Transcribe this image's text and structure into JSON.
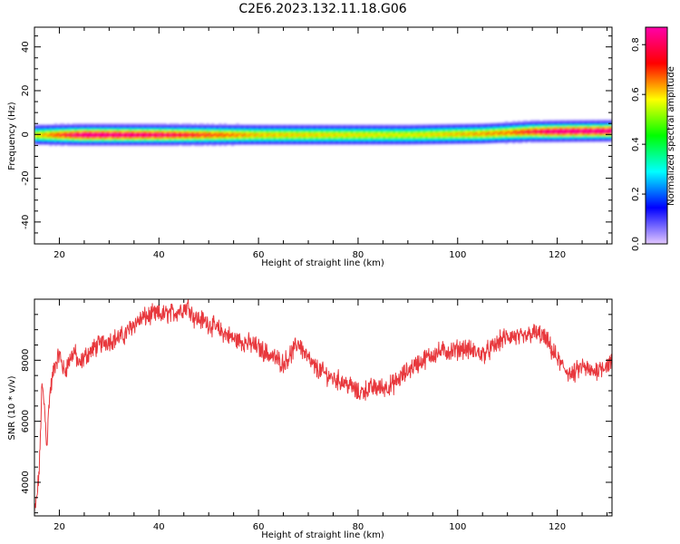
{
  "figure": {
    "title": "C2E6.2023.132.11.18.G06"
  },
  "chart_data": [
    {
      "type": "heatmap",
      "xlabel": "Height of straight line (km)",
      "ylabel": "Frequency (Hz)",
      "xlim": [
        15,
        131
      ],
      "ylim": [
        -50,
        49
      ],
      "x_ticks": [
        20,
        40,
        60,
        80,
        100,
        120
      ],
      "y_ticks": [
        -40,
        -20,
        0,
        20,
        40
      ],
      "x_tick_labels": [
        "20",
        "40",
        "60",
        "80",
        "100",
        "120"
      ],
      "y_tick_labels": [
        "-40",
        "-20",
        "0",
        "20",
        "40"
      ],
      "signal": {
        "center_frequency_hz": 0,
        "band_halfwidth_hz": 5,
        "offset_trend": [
          [
            15,
            0
          ],
          [
            25,
            0
          ],
          [
            60,
            0
          ],
          [
            90,
            0
          ],
          [
            105,
            0.5
          ],
          [
            115,
            1.5
          ],
          [
            131,
            1.8
          ]
        ],
        "peak_amplitude_trend": [
          [
            15,
            0.55
          ],
          [
            25,
            0.85
          ],
          [
            40,
            0.8
          ],
          [
            60,
            0.6
          ],
          [
            90,
            0.55
          ],
          [
            110,
            0.65
          ],
          [
            120,
            0.85
          ],
          [
            131,
            0.85
          ]
        ]
      },
      "colorbar": {
        "label": "Normalized spectral amplitude",
        "range": [
          0,
          0.87
        ],
        "ticks": [
          0.0,
          0.2,
          0.4,
          0.6,
          0.8
        ],
        "tick_labels": [
          "0.0",
          "0.2",
          "0.4",
          "0.6",
          "0.8"
        ],
        "colormap": "gist_rainbow_reversed",
        "colors": [
          "#e3c7ff",
          "#0000ff",
          "#00ffff",
          "#00ff00",
          "#ffff00",
          "#ff0000",
          "#ff00aa"
        ]
      }
    },
    {
      "type": "line",
      "xlabel": "Height of straight line (km)",
      "ylabel": "SNR (10 * v/v)",
      "xlim": [
        15,
        131
      ],
      "ylim": [
        2900,
        10000
      ],
      "x_ticks": [
        20,
        40,
        60,
        80,
        100,
        120
      ],
      "y_ticks": [
        4000,
        6000,
        8000
      ],
      "x_tick_labels": [
        "20",
        "40",
        "60",
        "80",
        "100",
        "120"
      ],
      "y_tick_labels": [
        "4000",
        "6000",
        "8000"
      ],
      "line_color": "#e8383d",
      "series": [
        {
          "x": [
            15,
            15.5,
            16,
            16.5,
            17,
            17.5,
            18,
            19,
            20,
            21,
            22,
            23,
            24,
            25,
            27,
            29,
            31,
            33,
            35,
            37,
            39,
            41,
            43,
            45,
            46,
            47,
            49,
            51,
            53,
            55,
            57,
            59,
            61,
            63,
            65,
            67,
            68,
            69,
            71,
            73,
            75,
            77,
            79,
            80,
            81,
            83,
            85,
            87,
            89,
            91,
            93,
            95,
            97,
            99,
            101,
            103,
            105,
            107,
            109,
            111,
            113,
            115,
            117,
            118,
            119,
            121,
            123,
            125,
            127,
            129,
            131
          ],
          "y": [
            3000,
            3500,
            4500,
            7200,
            6500,
            5200,
            6800,
            7800,
            8200,
            7600,
            8000,
            8300,
            7800,
            8100,
            8400,
            8600,
            8700,
            8800,
            9200,
            9400,
            9500,
            9500,
            9550,
            9700,
            9800,
            9400,
            9300,
            9100,
            8900,
            8700,
            8600,
            8500,
            8300,
            8100,
            7900,
            8300,
            8600,
            8300,
            7800,
            7600,
            7400,
            7300,
            7100,
            6900,
            7000,
            7100,
            7100,
            7200,
            7500,
            7800,
            8000,
            8200,
            8300,
            8300,
            8400,
            8300,
            8200,
            8400,
            8700,
            8800,
            8700,
            8900,
            8800,
            8600,
            8300,
            7800,
            7500,
            7800,
            7600,
            7800,
            7900
          ]
        }
      ]
    }
  ]
}
